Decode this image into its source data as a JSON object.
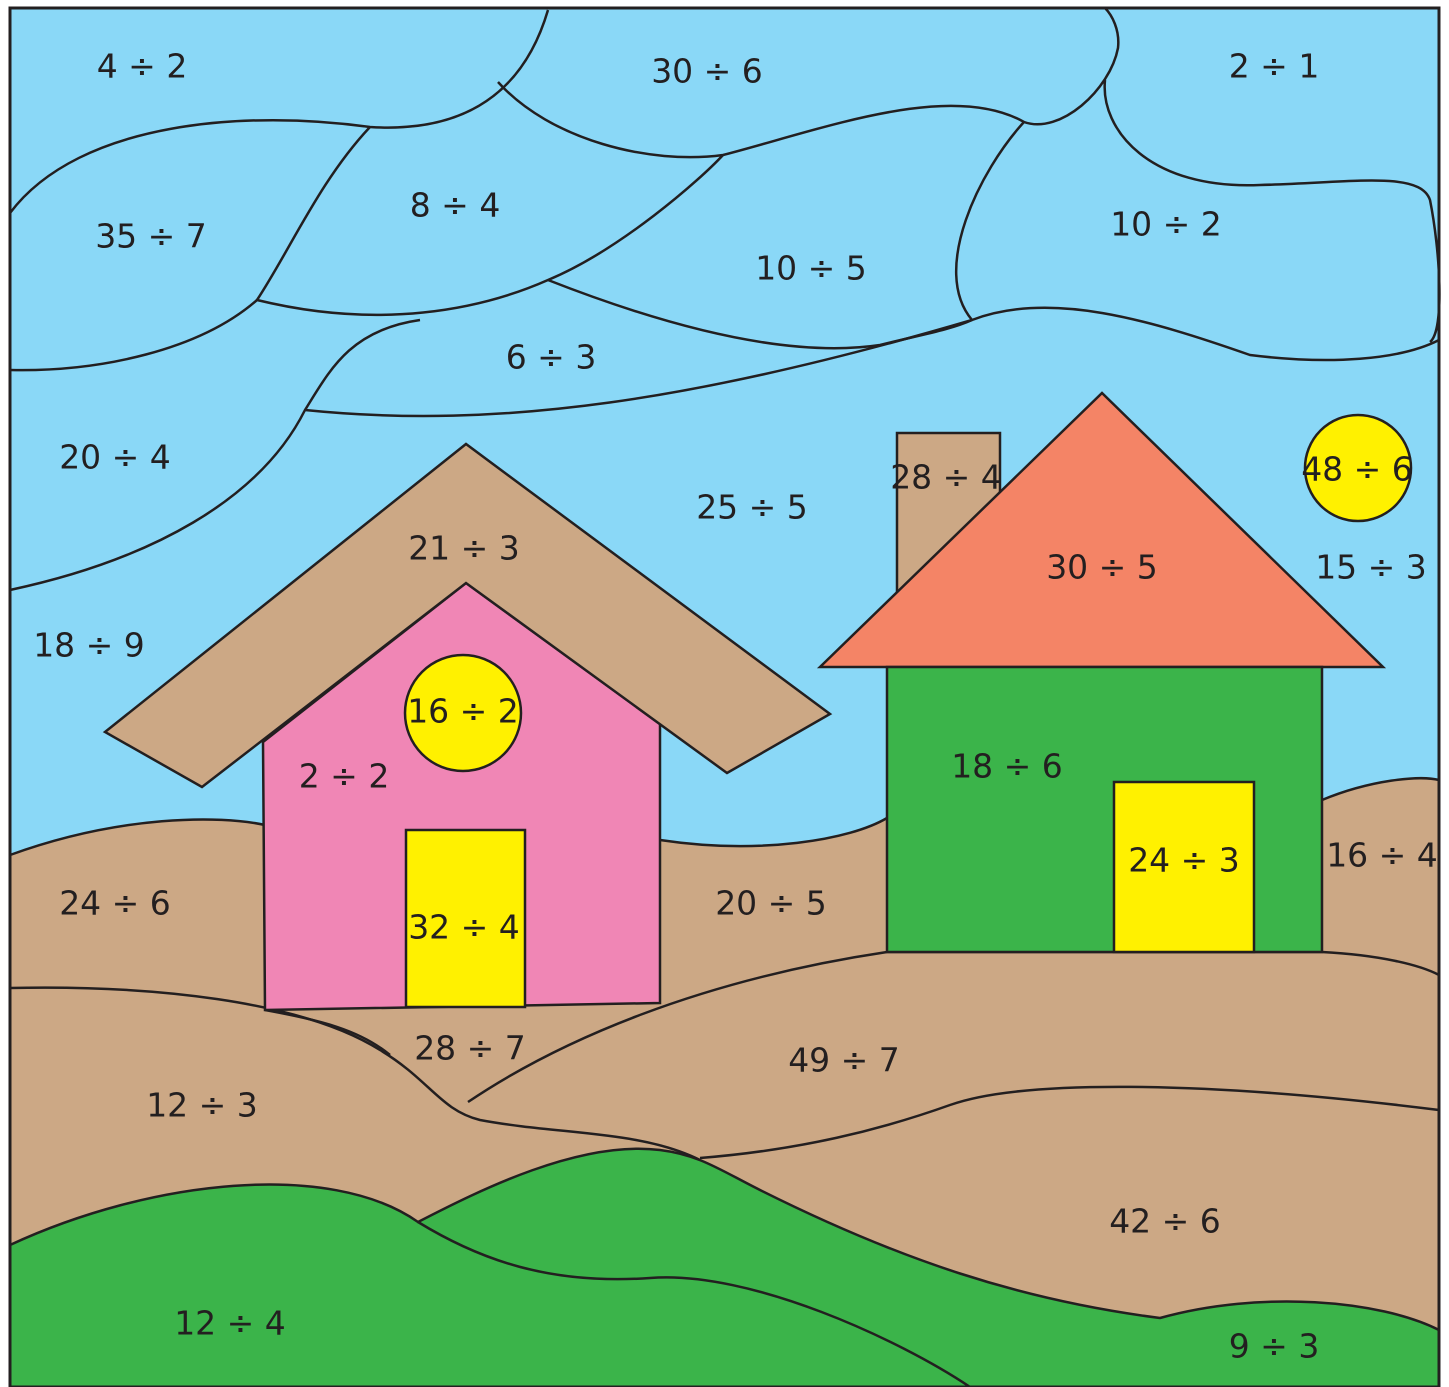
{
  "labels": [
    "4 ÷ 2",
    "30 ÷ 6",
    "2 ÷ 1",
    "35 ÷ 7",
    "8 ÷ 4",
    "10 ÷ 5",
    "10 ÷ 2",
    "6 ÷ 3",
    "20 ÷ 4",
    "25 ÷ 5",
    "28 ÷ 4",
    "48 ÷ 6",
    "21 ÷ 3",
    "30 ÷ 5",
    "15 ÷ 3",
    "18 ÷ 9",
    "16 ÷ 2",
    "2 ÷ 2",
    "18 ÷ 6",
    "24 ÷ 3",
    "16 ÷ 4",
    "24 ÷ 6",
    "20 ÷ 5",
    "32 ÷ 4",
    "28 ÷ 7",
    "49 ÷ 7",
    "12 ÷ 3",
    "42 ÷ 6",
    "12 ÷ 4",
    "9 ÷ 3"
  ]
}
